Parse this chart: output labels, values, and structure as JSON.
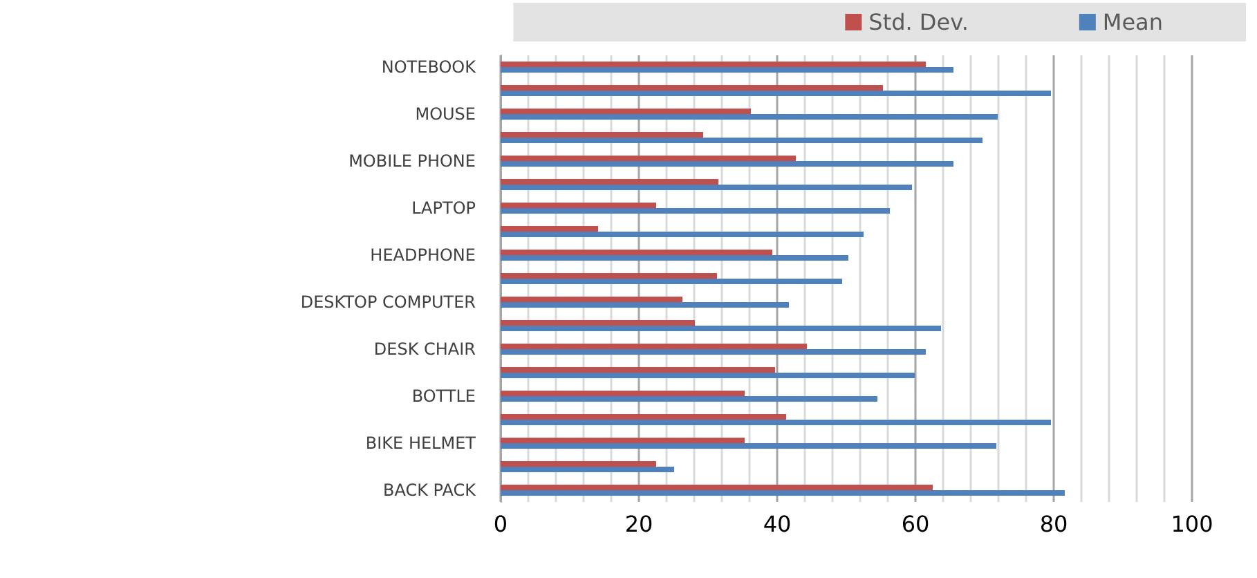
{
  "chart_data": {
    "type": "bar",
    "orientation": "horizontal",
    "categories": [
      "NOTEBOOK",
      null,
      "MOUSE",
      null,
      "MOBILE PHONE",
      null,
      "LAPTOP",
      null,
      "HEADPHONE",
      null,
      "DESKTOP COMPUTER",
      null,
      "DESK CHAIR",
      null,
      "BOTTLE",
      null,
      "BIKE HELMET",
      null,
      "BACK PACK"
    ],
    "series": [
      {
        "name": "Std. Dev.",
        "color": "#c0504d",
        "values": [
          61.5,
          55.3,
          36.2,
          29.3,
          42.7,
          31.5,
          22.5,
          14.1,
          39.3,
          31.3,
          26.3,
          28.1,
          44.3,
          39.7,
          35.3,
          41.3,
          35.3,
          22.5,
          62.5
        ]
      },
      {
        "name": "Mean",
        "color": "#4f81bd",
        "values": [
          65.5,
          79.6,
          71.9,
          69.7,
          65.5,
          59.5,
          56.3,
          52.5,
          50.3,
          49.4,
          41.7,
          63.7,
          61.5,
          59.9,
          54.5,
          79.6,
          71.7,
          25.1,
          81.6
        ]
      }
    ],
    "xlim": [
      0,
      100
    ],
    "xticks": [
      0,
      20,
      40,
      60,
      80,
      100
    ],
    "grid": "x",
    "legend": "top right"
  }
}
